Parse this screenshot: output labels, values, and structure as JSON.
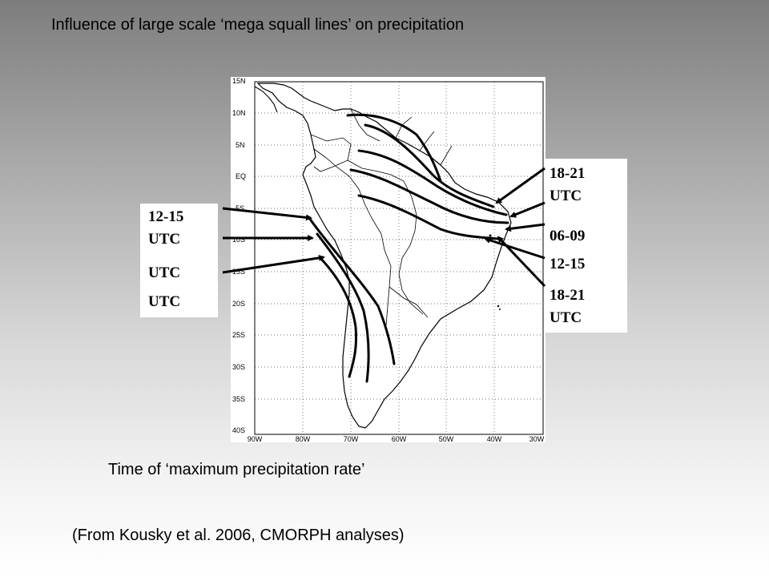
{
  "title": "Influence of large scale ‘mega squall lines’ on precipitation",
  "caption": "Time of ‘maximum precipitation rate’",
  "source": "(From Kousky et al. 2006, CMORPH analyses)",
  "map": {
    "lat_labels": [
      "15N",
      "10N",
      "5N",
      "EQ",
      "5S",
      "10S",
      "15S",
      "20S",
      "25S",
      "30S",
      "35S",
      "40S"
    ],
    "lon_labels": [
      "90W",
      "80W",
      "70W",
      "60W",
      "50W",
      "40W",
      "30W"
    ]
  },
  "left_labels": [
    "12-15",
    "UTC",
    "UTC",
    "UTC"
  ],
  "right_labels": [
    "18-21",
    "UTC",
    "06-09",
    "12-15",
    "18-21",
    "UTC"
  ],
  "colors": {
    "line": "#000000",
    "background_top": "#7d7d7d",
    "background_bottom": "#ffffff"
  }
}
